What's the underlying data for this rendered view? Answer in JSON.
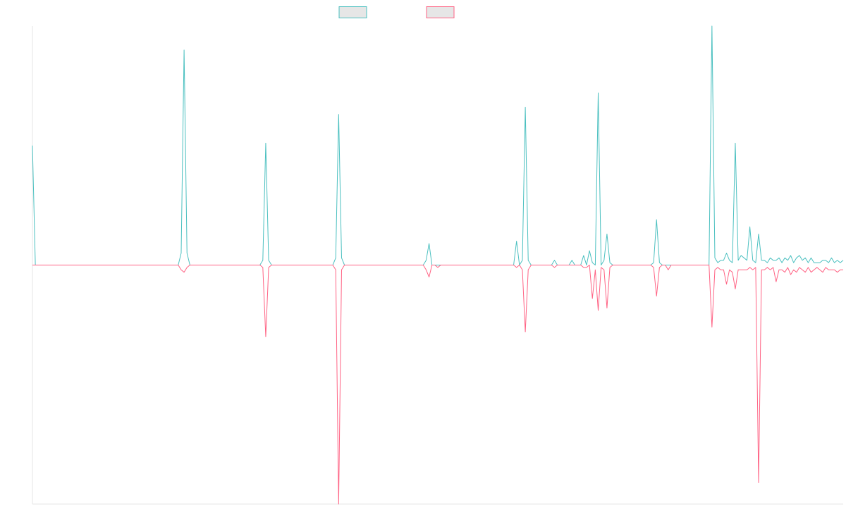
{
  "chart_data": {
    "type": "line",
    "title": "",
    "xlabel": "",
    "ylabel": "",
    "grid": false,
    "legend": {
      "placement": "top-center"
    },
    "ylim": [
      -100,
      100
    ],
    "colors": {
      "series_1": "#4bc0c0",
      "series_2": "#ff6384",
      "legend_fill": "#e6e6e6",
      "axis": "#e5e5e5"
    },
    "series": [
      {
        "name": "",
        "color": "#4bc0c0",
        "points": [
          [
            0,
            50
          ],
          [
            1,
            0
          ],
          [
            2,
            0
          ],
          [
            50,
            0
          ],
          [
            51,
            5
          ],
          [
            52,
            90
          ],
          [
            53,
            5
          ],
          [
            54,
            0
          ],
          [
            78,
            0
          ],
          [
            79,
            2
          ],
          [
            80,
            51
          ],
          [
            81,
            2
          ],
          [
            82,
            0
          ],
          [
            103,
            0
          ],
          [
            104,
            3
          ],
          [
            105,
            63
          ],
          [
            106,
            3
          ],
          [
            107,
            0
          ],
          [
            134,
            0
          ],
          [
            135,
            2
          ],
          [
            136,
            9
          ],
          [
            137,
            0
          ],
          [
            138,
            0
          ],
          [
            165,
            0
          ],
          [
            166,
            10
          ],
          [
            167,
            0
          ],
          [
            168,
            2
          ],
          [
            169,
            66
          ],
          [
            170,
            2
          ],
          [
            171,
            0
          ],
          [
            178,
            0
          ],
          [
            179,
            2
          ],
          [
            180,
            0
          ],
          [
            184,
            0
          ],
          [
            185,
            2
          ],
          [
            186,
            0
          ],
          [
            188,
            0
          ],
          [
            189,
            4
          ],
          [
            190,
            0
          ],
          [
            191,
            6
          ],
          [
            192,
            1
          ],
          [
            193,
            0
          ],
          [
            194,
            72
          ],
          [
            195,
            0
          ],
          [
            196,
            2
          ],
          [
            197,
            13
          ],
          [
            198,
            1
          ],
          [
            199,
            0
          ],
          [
            212,
            0
          ],
          [
            213,
            1
          ],
          [
            214,
            19
          ],
          [
            215,
            1
          ],
          [
            216,
            0
          ],
          [
            232,
            0
          ],
          [
            233,
            100
          ],
          [
            234,
            3
          ],
          [
            235,
            1
          ],
          [
            236,
            2
          ],
          [
            237,
            2
          ],
          [
            238,
            5
          ],
          [
            239,
            2
          ],
          [
            240,
            1
          ],
          [
            241,
            51
          ],
          [
            242,
            2
          ],
          [
            243,
            4
          ],
          [
            244,
            3
          ],
          [
            245,
            2
          ],
          [
            246,
            16
          ],
          [
            247,
            2
          ],
          [
            248,
            1
          ],
          [
            249,
            13
          ],
          [
            250,
            2
          ],
          [
            251,
            2
          ],
          [
            252,
            1
          ],
          [
            253,
            3
          ],
          [
            254,
            2
          ],
          [
            255,
            2
          ],
          [
            256,
            3
          ],
          [
            257,
            1
          ],
          [
            258,
            3
          ],
          [
            259,
            2
          ],
          [
            260,
            4
          ],
          [
            261,
            1
          ],
          [
            262,
            3
          ],
          [
            263,
            4
          ],
          [
            264,
            2
          ],
          [
            265,
            3
          ],
          [
            266,
            1
          ],
          [
            267,
            3
          ],
          [
            268,
            1
          ],
          [
            269,
            1
          ],
          [
            270,
            1
          ],
          [
            271,
            2
          ],
          [
            272,
            2
          ],
          [
            273,
            1
          ],
          [
            274,
            3
          ],
          [
            275,
            1
          ],
          [
            276,
            2
          ],
          [
            277,
            1
          ],
          [
            278,
            2
          ]
        ]
      },
      {
        "name": "",
        "color": "#ff6384",
        "points": [
          [
            0,
            0
          ],
          [
            1,
            0
          ],
          [
            2,
            0
          ],
          [
            50,
            0
          ],
          [
            51,
            -2
          ],
          [
            52,
            -3
          ],
          [
            53,
            -1
          ],
          [
            54,
            0
          ],
          [
            78,
            0
          ],
          [
            79,
            -1
          ],
          [
            80,
            -30
          ],
          [
            81,
            -1
          ],
          [
            82,
            0
          ],
          [
            103,
            0
          ],
          [
            104,
            -2
          ],
          [
            105,
            -100
          ],
          [
            106,
            -2
          ],
          [
            107,
            0
          ],
          [
            134,
            0
          ],
          [
            135,
            -2
          ],
          [
            136,
            -5
          ],
          [
            137,
            0
          ],
          [
            138,
            0
          ],
          [
            139,
            -1
          ],
          [
            140,
            0
          ],
          [
            165,
            0
          ],
          [
            166,
            -1
          ],
          [
            167,
            0
          ],
          [
            168,
            -2
          ],
          [
            169,
            -28
          ],
          [
            170,
            -2
          ],
          [
            171,
            0
          ],
          [
            178,
            0
          ],
          [
            179,
            -1
          ],
          [
            180,
            0
          ],
          [
            188,
            0
          ],
          [
            189,
            -1
          ],
          [
            190,
            -1
          ],
          [
            191,
            0
          ],
          [
            192,
            -14
          ],
          [
            193,
            -2
          ],
          [
            194,
            -19
          ],
          [
            195,
            -1
          ],
          [
            196,
            -2
          ],
          [
            197,
            -18
          ],
          [
            198,
            -1
          ],
          [
            199,
            0
          ],
          [
            212,
            0
          ],
          [
            213,
            -1
          ],
          [
            214,
            -13
          ],
          [
            215,
            -1
          ],
          [
            216,
            0
          ],
          [
            217,
            0
          ],
          [
            218,
            -2
          ],
          [
            219,
            0
          ],
          [
            232,
            0
          ],
          [
            233,
            -26
          ],
          [
            234,
            -2
          ],
          [
            235,
            -1
          ],
          [
            236,
            -2
          ],
          [
            237,
            -2
          ],
          [
            238,
            -8
          ],
          [
            239,
            -2
          ],
          [
            240,
            -3
          ],
          [
            241,
            -10
          ],
          [
            242,
            -2
          ],
          [
            243,
            -2
          ],
          [
            244,
            -2
          ],
          [
            245,
            -2
          ],
          [
            246,
            -1
          ],
          [
            247,
            -2
          ],
          [
            248,
            -1
          ],
          [
            249,
            -91
          ],
          [
            250,
            -2
          ],
          [
            251,
            -2
          ],
          [
            252,
            -1
          ],
          [
            253,
            -2
          ],
          [
            254,
            -1
          ],
          [
            255,
            -7
          ],
          [
            256,
            -2
          ],
          [
            257,
            -2
          ],
          [
            258,
            -3
          ],
          [
            259,
            -1
          ],
          [
            260,
            -4
          ],
          [
            261,
            -2
          ],
          [
            262,
            -3
          ],
          [
            263,
            -1
          ],
          [
            264,
            -2
          ],
          [
            265,
            -3
          ],
          [
            266,
            -1
          ],
          [
            267,
            -3
          ],
          [
            268,
            -2
          ],
          [
            269,
            -1
          ],
          [
            270,
            -2
          ],
          [
            271,
            -3
          ],
          [
            272,
            -1
          ],
          [
            273,
            -2
          ],
          [
            274,
            -2
          ],
          [
            275,
            -2
          ],
          [
            276,
            -3
          ],
          [
            277,
            -2
          ],
          [
            278,
            -2
          ]
        ]
      }
    ]
  }
}
